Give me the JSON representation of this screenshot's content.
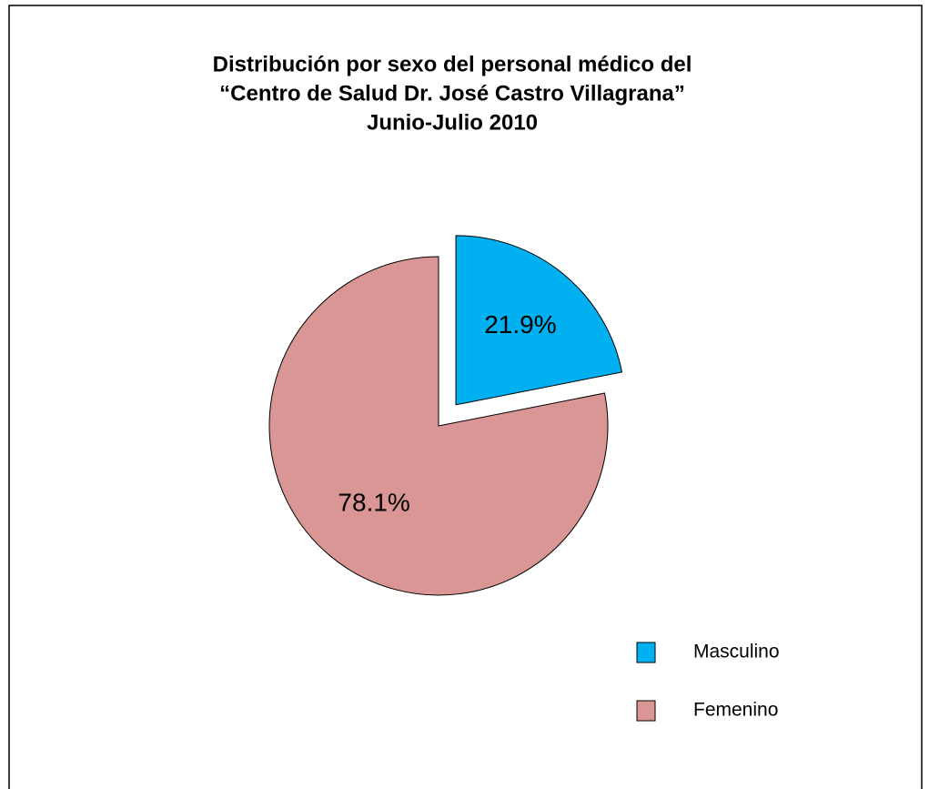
{
  "chart_data": {
    "type": "pie",
    "title": [
      "Distribución por sexo del personal médico del",
      "“Centro de Salud Dr. José Castro Villagrana”",
      "Junio-Julio 2010"
    ],
    "categories": [
      "Masculino",
      "Femenino"
    ],
    "values": [
      21.9,
      78.1
    ],
    "value_labels": [
      "21.9%",
      "78.1%"
    ],
    "colors": [
      "#00b0f0",
      "#d99694"
    ],
    "exploded": [
      true,
      false
    ]
  }
}
